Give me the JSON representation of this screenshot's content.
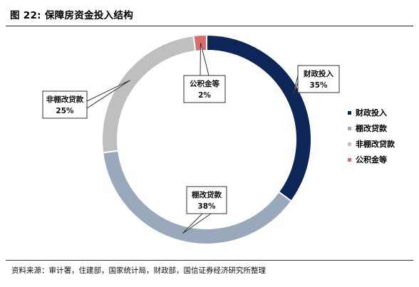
{
  "title": "图 22:  保障房资金投入结构",
  "source": "资料来源：审计署，住建部，国家统计局，财政部，国信证券经济研究所整理",
  "chart_data": {
    "type": "pie",
    "donut": true,
    "title": "图 22:  保障房资金投入结构",
    "slices": [
      {
        "label": "财政投入",
        "value": 35,
        "display": "35%",
        "color": "#0d2557"
      },
      {
        "label": "棚改贷款",
        "value": 38,
        "display": "38%",
        "color": "#99a9bb"
      },
      {
        "label": "非棚改贷款",
        "value": 25,
        "display": "25%",
        "color": "#bfbfbf"
      },
      {
        "label": "公积金等",
        "value": 2,
        "display": "2%",
        "color": "#d96b6b"
      }
    ],
    "legend_position": "right",
    "legend": [
      "财政投入",
      "棚改贷款",
      "非棚改贷款",
      "公积金等"
    ]
  }
}
